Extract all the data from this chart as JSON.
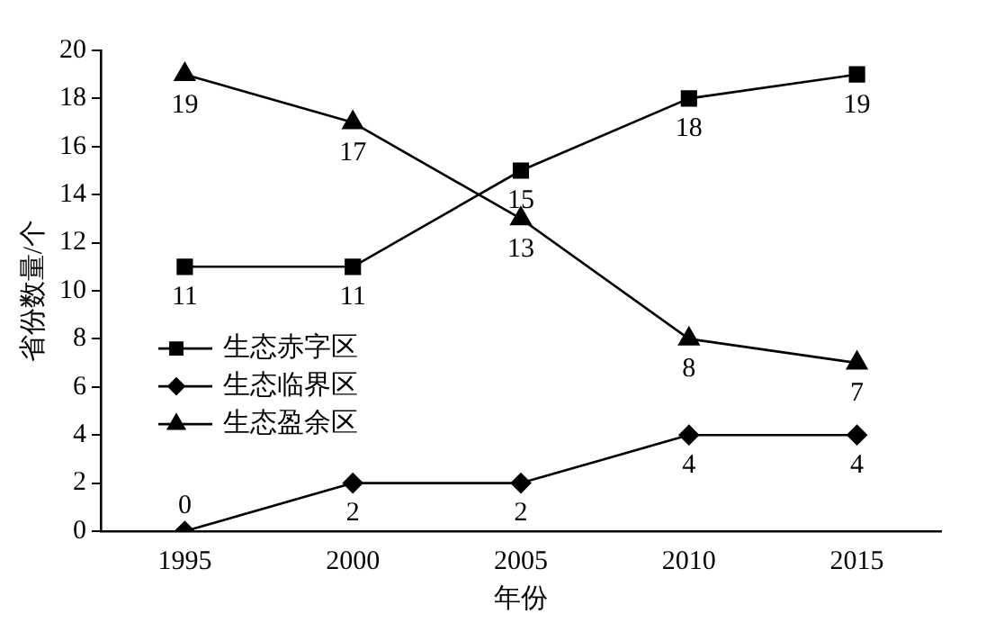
{
  "chart_data": {
    "type": "line",
    "xlabel": "年份",
    "ylabel": "省份数量/个",
    "categories": [
      "1995",
      "2000",
      "2005",
      "2010",
      "2015"
    ],
    "series": [
      {
        "name": "生态赤字区",
        "color": "#000000",
        "marker": "square",
        "values": [
          11,
          11,
          15,
          18,
          19
        ]
      },
      {
        "name": "生态临界区",
        "color": "#000000",
        "marker": "diamond",
        "values": [
          0,
          2,
          2,
          4,
          4
        ]
      },
      {
        "name": "生态盈余区",
        "color": "#000000",
        "marker": "triangle",
        "values": [
          19,
          17,
          13,
          8,
          7
        ]
      }
    ],
    "ylim": [
      0,
      20
    ],
    "yticks": [
      0,
      2,
      4,
      6,
      8,
      10,
      12,
      14,
      16,
      18,
      20
    ],
    "grid": false,
    "legend": "left",
    "data_labels": true,
    "line_style": "solid"
  }
}
